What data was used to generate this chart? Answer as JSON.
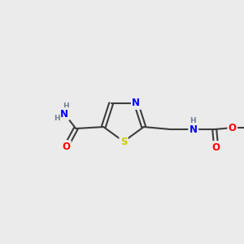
{
  "bg_color": "#ebebeb",
  "bond_color": "#3d3d3d",
  "N_color": "#0000ff",
  "O_color": "#ff0000",
  "S_color": "#cccc00",
  "H_color": "#708090",
  "line_width": 1.5,
  "font_size_atom": 8.5,
  "font_size_H": 6.5,
  "figsize": [
    3.0,
    3.0
  ],
  "dpi": 100,
  "xlim": [
    0,
    300
  ],
  "ylim": [
    0,
    300
  ]
}
